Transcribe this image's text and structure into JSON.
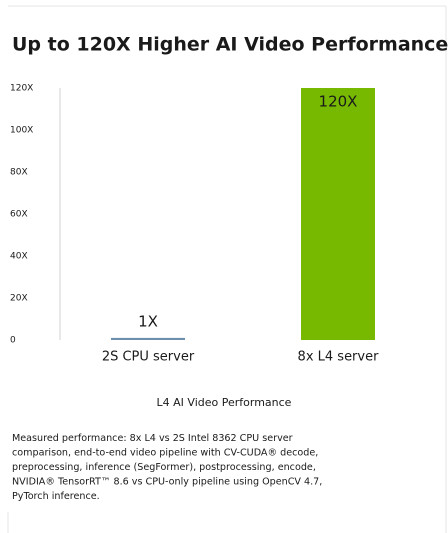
{
  "chart_data": {
    "type": "bar",
    "title": "Up to 120X Higher AI Video Performance",
    "categories": [
      "2S CPU server",
      "8x L4 server"
    ],
    "values": [
      1,
      120
    ],
    "value_labels": [
      "1X",
      "120X"
    ],
    "colors": [
      "#6d8fb0",
      "#76b900"
    ],
    "ylim": [
      0,
      120
    ],
    "yticks": [
      0,
      {
        "value": 20,
        "label": "20X"
      },
      {
        "value": 40,
        "label": "40X"
      },
      {
        "value": 60,
        "label": "60X"
      },
      {
        "value": 80,
        "label": "80X"
      },
      {
        "value": 100,
        "label": "100X"
      },
      {
        "value": 120,
        "label": "120X"
      }
    ],
    "grid": false,
    "xlabel": "L4 AI Video Performance",
    "footnote": [
      "Measured performance: 8x L4 vs 2S Intel 8362 CPU server",
      "comparison, end-to-end video pipeline with CV-CUDA® decode,",
      "preprocessing, inference (SegFormer), postprocessing, encode,",
      "NVIDIA® TensorRT™ 8.6 vs CPU-only pipeline using OpenCV 4.7,",
      "PyTorch inference."
    ]
  }
}
